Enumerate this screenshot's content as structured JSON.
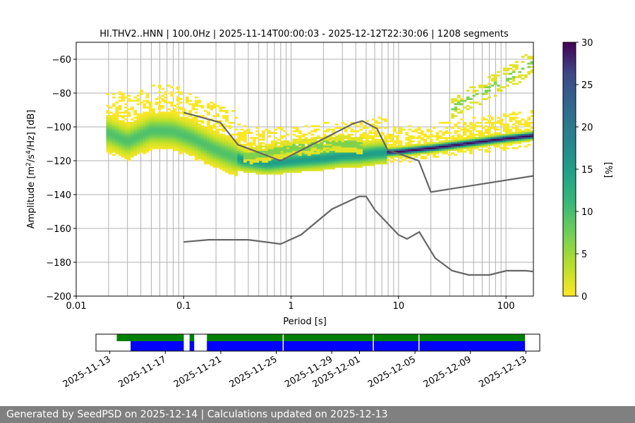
{
  "chart_data": {
    "type": "heatmap",
    "title": "HI.THV2..HNN | 100.0Hz | 2025-11-14T00:00:03 - 2025-12-12T22:30:06 | 1208 segments",
    "xlabel": "Period [s]",
    "ylabel_main": "Amplitude [m",
    "ylabel_tail": "/Hz] [dB]",
    "x_scale": "log",
    "x_range": [
      0.01,
      180
    ],
    "y_range": [
      -200,
      -50
    ],
    "x_ticks": [
      {
        "value": 0.01,
        "label": "0.01"
      },
      {
        "value": 0.1,
        "label": "0.1"
      },
      {
        "value": 1,
        "label": "1"
      },
      {
        "value": 10,
        "label": "10"
      },
      {
        "value": 100,
        "label": "100"
      }
    ],
    "y_ticks": [
      {
        "value": -60,
        "label": "−60"
      },
      {
        "value": -80,
        "label": "−80"
      },
      {
        "value": -100,
        "label": "−100"
      },
      {
        "value": -120,
        "label": "−120"
      },
      {
        "value": -140,
        "label": "−140"
      },
      {
        "value": -160,
        "label": "−160"
      },
      {
        "value": -180,
        "label": "−180"
      },
      {
        "value": -200,
        "label": "−200"
      }
    ],
    "grid_periods": [
      0.02,
      0.03,
      0.04,
      0.05,
      0.06,
      0.07,
      0.08,
      0.09,
      0.1,
      0.2,
      0.3,
      0.4,
      0.5,
      0.6,
      0.7,
      0.8,
      0.9,
      1,
      2,
      3,
      4,
      5,
      6,
      7,
      8,
      9,
      10,
      20,
      30,
      40,
      50,
      60,
      70,
      80,
      90,
      100
    ],
    "colorbar": {
      "label": "[%]",
      "range": [
        0,
        30
      ],
      "ticks": [
        {
          "value": 0,
          "label": "0"
        },
        {
          "value": 5,
          "label": "5"
        },
        {
          "value": 10,
          "label": "10"
        },
        {
          "value": 15,
          "label": "15"
        },
        {
          "value": 20,
          "label": "20"
        },
        {
          "value": 25,
          "label": "25"
        },
        {
          "value": 30,
          "label": "30"
        }
      ],
      "colormap": "viridis_r"
    },
    "noise_models": [
      {
        "name": "high_noise_model",
        "periods": [
          0.1,
          0.22,
          0.32,
          0.8,
          3.8,
          4.6,
          6.3,
          7.9,
          15.4,
          20,
          354.8
        ],
        "values": [
          -91.5,
          -97.4,
          -110.5,
          -120,
          -98,
          -96.5,
          -101,
          -113.5,
          -120,
          -138.5,
          -126
        ]
      },
      {
        "name": "low_noise_model",
        "periods": [
          0.1,
          0.17,
          0.4,
          0.8,
          1.24,
          2.4,
          4.3,
          5,
          6,
          10,
          12,
          15.6,
          21.9,
          31.6,
          45,
          70,
          101,
          154,
          178
        ],
        "values": [
          -168,
          -166.7,
          -166.7,
          -169.2,
          -163.7,
          -148.6,
          -141.1,
          -141.1,
          -149,
          -163.8,
          -166.2,
          -162.1,
          -177.5,
          -185,
          -187.5,
          -187.5,
          -185,
          -185,
          -185.5
        ]
      }
    ],
    "mode_curve": {
      "periods": [
        0.02,
        0.03,
        0.05,
        0.08,
        0.12,
        0.2,
        0.35,
        0.6,
        1,
        2,
        3,
        4.5,
        6,
        10,
        20,
        40,
        80,
        180
      ],
      "values": [
        -104,
        -109,
        -102.5,
        -103,
        -107,
        -114,
        -120,
        -122,
        -120.5,
        -119,
        -117.5,
        -117,
        -116,
        -115,
        -113,
        -110.5,
        -108,
        -105.5
      ]
    },
    "secondary_lobe": {
      "periods": [
        0.35,
        0.6,
        1,
        1.5,
        2,
        2.8,
        3.5,
        4.5
      ],
      "values": [
        -118,
        -116,
        -113,
        -112,
        -111,
        -110.5,
        -110,
        -112
      ]
    },
    "upper_tail": {
      "periods": [
        30,
        60,
        100,
        180
      ],
      "values": [
        -90,
        -80,
        -72,
        -62
      ]
    }
  },
  "availability": {
    "date_range": [
      "2025-11-12",
      "2025-12-14"
    ],
    "date_ticks": [
      "2025-11-13",
      "2025-11-17",
      "2025-11-21",
      "2025-11-25",
      "2025-11-29",
      "2025-12-01",
      "2025-12-05",
      "2025-12-09",
      "2025-12-13"
    ],
    "segments_green": [
      [
        "2025-11-13T12:00",
        "2025-11-18T08:00"
      ],
      [
        "2025-11-18T18:00",
        "2025-11-19T02:00"
      ],
      [
        "2025-11-20T00:00",
        "2025-12-12T22:30"
      ]
    ],
    "segments_blue": [
      [
        "2025-11-14T12:00",
        "2025-11-18T08:00"
      ],
      [
        "2025-11-18T18:00",
        "2025-11-19T02:00"
      ],
      [
        "2025-11-20T00:00",
        "2025-12-12T22:30"
      ]
    ],
    "gap_markers": [
      "2025-11-25T12:00",
      "2025-12-02T00:00",
      "2025-12-05T07:00"
    ],
    "green_color": "#008000",
    "blue_color": "#0000ff"
  },
  "footer": {
    "text": "Generated by SeedPSD on 2025-12-14 | Calculations updated on 2025-12-13",
    "background": "#808080"
  }
}
